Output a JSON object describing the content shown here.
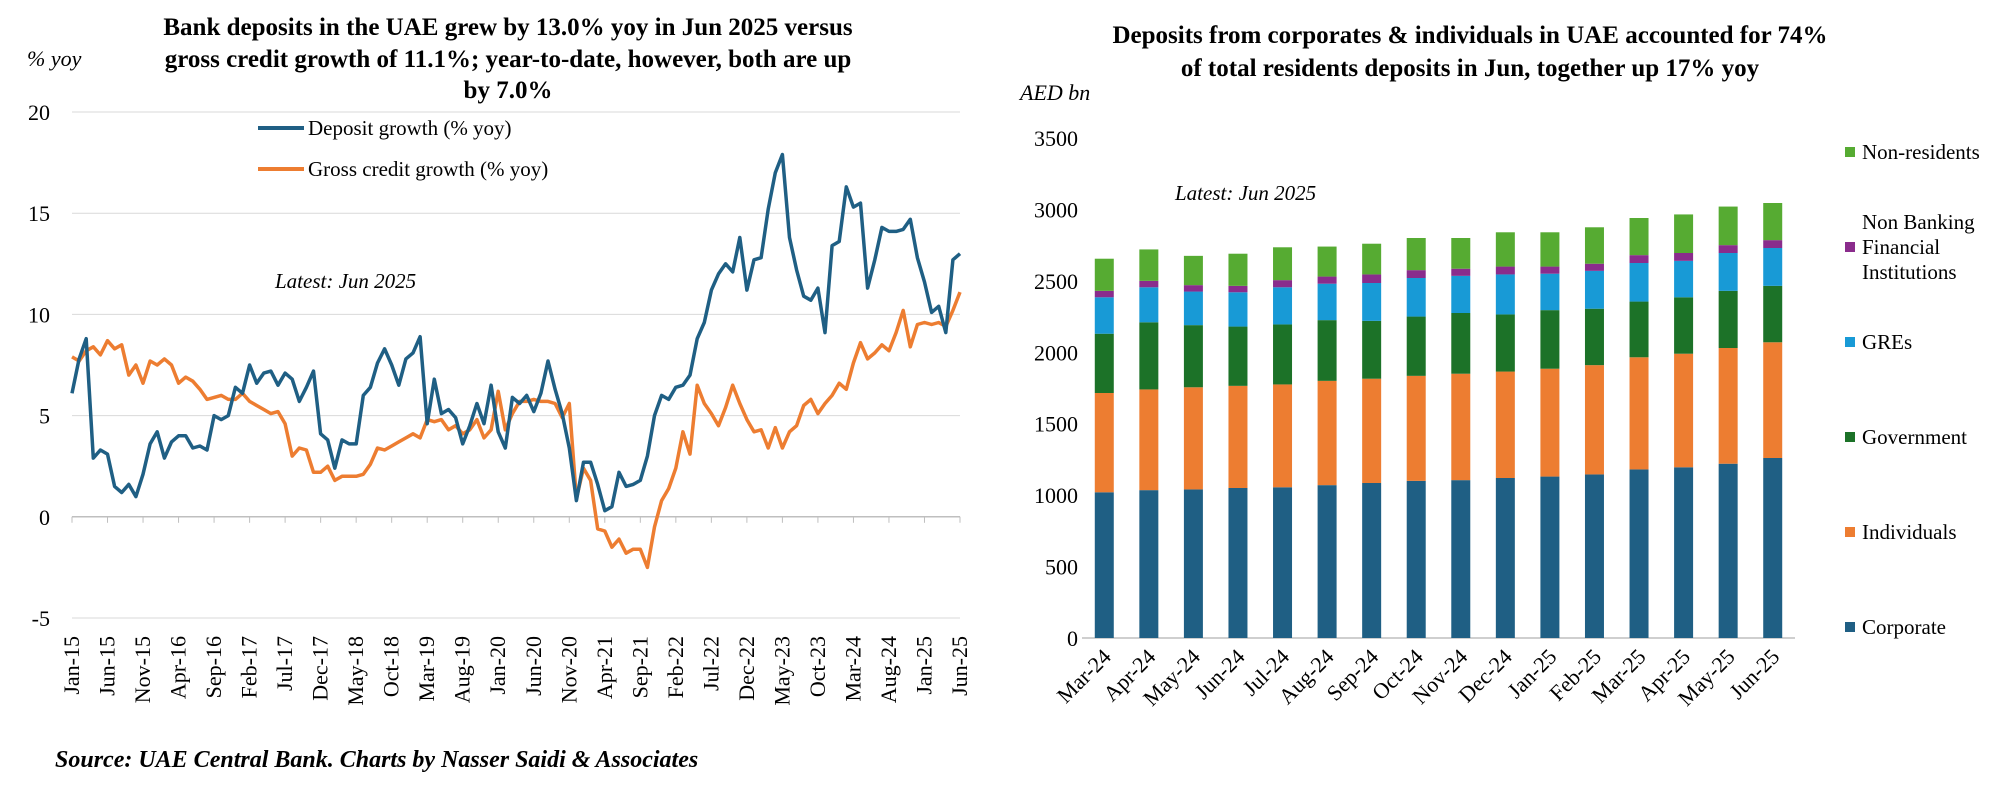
{
  "source": "Source: UAE Central Bank. Charts by Nasser Saidi & Associates",
  "chart_data": [
    {
      "type": "line",
      "title": "Bank deposits in the UAE grew by 13.0% yoy in Jun 2025 versus gross credit growth of 11.1%; year-to-date, however, both are up by 7.0%",
      "title_lines": [
        "Bank deposits in the UAE grew by 13.0% yoy in Jun 2025 versus",
        "gross credit growth of 11.1%; year-to-date, however, both are up",
        "by 7.0%"
      ],
      "ylabel": "% yoy",
      "annotation": "Latest: Jun 2025",
      "ylim": [
        -5,
        20
      ],
      "yticks": [
        -5,
        0,
        5,
        10,
        15,
        20
      ],
      "x_start": "Jan-15",
      "x_end": "Jun-25",
      "xticks": [
        "Jan-15",
        "Jun-15",
        "Nov-15",
        "Apr-16",
        "Sep-16",
        "Feb-17",
        "Jul-17",
        "Dec-17",
        "May-18",
        "Oct-18",
        "Mar-19",
        "Aug-19",
        "Jan-20",
        "Jun-20",
        "Nov-20",
        "Apr-21",
        "Sep-21",
        "Feb-22",
        "Jul-22",
        "Dec-22",
        "May-23",
        "Oct-23",
        "Mar-24",
        "Aug-24",
        "Jan-25",
        "Jun-25"
      ],
      "grid": true,
      "legend_position": "top-left",
      "series": [
        {
          "name": "Deposit growth (% yoy)",
          "color": "#1f5f84",
          "values": [
            6.1,
            7.8,
            8.8,
            2.9,
            3.3,
            3.1,
            1.5,
            1.2,
            1.6,
            1.0,
            2.1,
            3.6,
            4.2,
            2.9,
            3.7,
            4.0,
            4.0,
            3.4,
            3.5,
            3.3,
            5.0,
            4.8,
            5.0,
            6.4,
            6.1,
            7.5,
            6.6,
            7.1,
            7.2,
            6.5,
            7.1,
            6.8,
            5.7,
            6.4,
            7.2,
            4.1,
            3.8,
            2.4,
            3.8,
            3.6,
            3.6,
            6.0,
            6.4,
            7.6,
            8.3,
            7.5,
            6.5,
            7.8,
            8.1,
            8.9,
            4.6,
            6.8,
            5.1,
            5.3,
            4.9,
            3.6,
            4.5,
            5.6,
            4.6,
            6.5,
            4.2,
            3.4,
            5.9,
            5.6,
            6.0,
            5.2,
            6.1,
            7.7,
            6.3,
            5.1,
            3.4,
            0.8,
            2.7,
            2.7,
            1.6,
            0.3,
            0.5,
            2.2,
            1.5,
            1.6,
            1.8,
            3.0,
            5.0,
            6.0,
            5.8,
            6.4,
            6.5,
            7.0,
            8.8,
            9.6,
            11.2,
            12.0,
            12.5,
            12.1,
            13.8,
            11.2,
            12.7,
            12.8,
            15.2,
            17.0,
            17.9,
            13.8,
            12.2,
            10.9,
            10.7,
            11.3,
            9.1,
            13.4,
            13.6,
            16.3,
            15.3,
            15.5,
            11.3,
            12.7,
            14.3,
            14.1,
            14.1,
            14.2,
            14.7,
            12.8,
            11.6,
            10.1,
            10.4,
            9.1,
            12.7,
            13.0
          ]
        },
        {
          "name": "Gross credit growth (% yoy)",
          "color": "#ed7d31",
          "values": [
            7.9,
            7.7,
            8.2,
            8.4,
            8.0,
            8.7,
            8.3,
            8.5,
            7.0,
            7.5,
            6.6,
            7.7,
            7.5,
            7.8,
            7.5,
            6.6,
            6.9,
            6.7,
            6.3,
            5.8,
            5.9,
            6.0,
            5.8,
            5.8,
            6.1,
            5.7,
            5.5,
            5.3,
            5.1,
            5.2,
            4.6,
            3.0,
            3.4,
            3.3,
            2.2,
            2.2,
            2.5,
            1.8,
            2.0,
            2.0,
            2.0,
            2.1,
            2.6,
            3.4,
            3.3,
            3.5,
            3.7,
            3.9,
            4.1,
            3.9,
            4.8,
            4.7,
            4.8,
            4.3,
            4.5,
            4.1,
            4.3,
            4.8,
            3.9,
            4.3,
            6.2,
            4.3,
            5.1,
            5.7,
            5.7,
            5.8,
            5.7,
            5.7,
            5.6,
            4.9,
            5.6,
            0.9,
            2.4,
            1.8,
            -0.6,
            -0.7,
            -1.5,
            -1.1,
            -1.8,
            -1.6,
            -1.6,
            -2.5,
            -0.5,
            0.8,
            1.4,
            2.4,
            4.2,
            3.1,
            6.5,
            5.6,
            5.1,
            4.5,
            5.4,
            6.5,
            5.6,
            4.8,
            4.2,
            4.3,
            3.4,
            4.4,
            3.4,
            4.2,
            4.5,
            5.5,
            5.8,
            5.1,
            5.6,
            6.0,
            6.6,
            6.3,
            7.6,
            8.6,
            7.8,
            8.1,
            8.5,
            8.2,
            9.1,
            10.2,
            8.4,
            9.5,
            9.6,
            9.5,
            9.6,
            9.4,
            10.2,
            11.1
          ]
        }
      ]
    },
    {
      "type": "bar",
      "stacked": true,
      "title": "Deposits from corporates & individuals in UAE accounted for 74% of total residents deposits in Jun, together up 17% yoy",
      "title_lines": [
        "Deposits from corporates & individuals in UAE accounted for 74%",
        "of total residents deposits in Jun, together up 17% yoy"
      ],
      "ylabel": "AED bn",
      "annotation": "Latest: Jun 2025",
      "ylim": [
        0,
        3500
      ],
      "yticks": [
        0,
        500,
        1000,
        1500,
        2000,
        2500,
        3000,
        3500
      ],
      "grid": false,
      "legend_position": "right",
      "categories": [
        "Mar-24",
        "Apr-24",
        "May-24",
        "Jun-24",
        "Jul-24",
        "Aug-24",
        "Sep-24",
        "Oct-24",
        "Nov-24",
        "Dec-24",
        "Jan-25",
        "Feb-25",
        "Mar-25",
        "Apr-25",
        "May-25",
        "Jun-25"
      ],
      "series": [
        {
          "name": "Corporate",
          "color": "#1f5f84",
          "legend_lines": [
            "Corporate"
          ],
          "values": [
            1020,
            1035,
            1040,
            1050,
            1055,
            1070,
            1085,
            1100,
            1105,
            1120,
            1130,
            1145,
            1180,
            1195,
            1220,
            1260
          ]
        },
        {
          "name": "Individuals",
          "color": "#ed7d31",
          "legend_lines": [
            "Individuals"
          ],
          "values": [
            695,
            705,
            715,
            715,
            720,
            730,
            730,
            735,
            745,
            745,
            755,
            765,
            785,
            795,
            810,
            810
          ]
        },
        {
          "name": "Government",
          "color": "#1c7228",
          "legend_lines": [
            "Government"
          ],
          "values": [
            415,
            470,
            435,
            415,
            420,
            425,
            405,
            415,
            425,
            400,
            410,
            395,
            390,
            395,
            400,
            395
          ]
        },
        {
          "name": "GREs",
          "color": "#189ad6",
          "legend_lines": [
            "GREs"
          ],
          "values": [
            255,
            245,
            235,
            240,
            260,
            255,
            265,
            270,
            260,
            280,
            255,
            265,
            270,
            255,
            265,
            265
          ]
        },
        {
          "name": "Non Banking Financial Institutions",
          "color": "#8a2c8c",
          "legend_lines": [
            "Non Banking",
            "Financial",
            "Institutions"
          ],
          "values": [
            45,
            45,
            45,
            45,
            50,
            50,
            60,
            55,
            50,
            55,
            50,
            50,
            55,
            55,
            55,
            55
          ]
        },
        {
          "name": "Non-residents",
          "color": "#56ab32",
          "legend_lines": [
            "Non-residents"
          ],
          "values": [
            225,
            220,
            205,
            225,
            230,
            210,
            215,
            225,
            215,
            240,
            240,
            255,
            260,
            270,
            270,
            260
          ]
        }
      ]
    }
  ]
}
